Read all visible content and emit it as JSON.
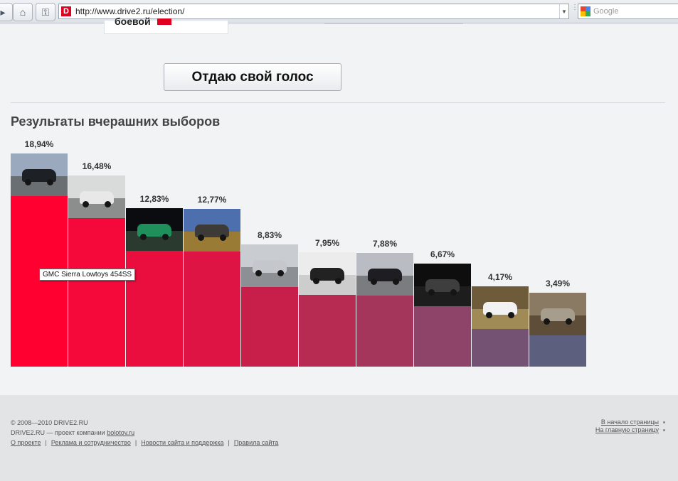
{
  "browser": {
    "url": "http://www.drive2.ru/election/",
    "favicon_letter": "D",
    "search_engine": "Google"
  },
  "page": {
    "top_card_text": "боевой",
    "vote_button_label": "Отдаю свой голос",
    "results_title": "Результаты вчерашних выборов",
    "tooltip": "GMC Sierra Lowtoys 454SS"
  },
  "chart_data": {
    "type": "bar",
    "categories": [
      "",
      "",
      "",
      "",
      "",
      "",
      "",
      "",
      "",
      ""
    ],
    "values": [
      18.94,
      16.48,
      12.83,
      12.77,
      8.83,
      7.95,
      7.88,
      6.67,
      4.17,
      3.49
    ],
    "value_labels": [
      "18,94%",
      "16,48%",
      "12,83%",
      "12,77%",
      "8,83%",
      "7,95%",
      "7,88%",
      "6,67%",
      "4,17%",
      "3,49%"
    ],
    "bar_colors": [
      "#ff0031",
      "#f4093a",
      "#ea0e3e",
      "#dd1444",
      "#c81e4a",
      "#b72a52",
      "#a4365c",
      "#8e4468",
      "#745274",
      "#5d5f7e"
    ],
    "photo_colors": [
      {
        "sky": "#9aa9bd",
        "ground": "#6a6f74",
        "car": "#1d2126"
      },
      {
        "sky": "#d9dada",
        "ground": "#8c8d8d",
        "car": "#e8e8e8"
      },
      {
        "sky": "#0b0c10",
        "ground": "#2a3a2f",
        "car": "#1f8f5c"
      },
      {
        "sky": "#4d6fae",
        "ground": "#9a7b35",
        "car": "#3c3b37"
      },
      {
        "sky": "#c9ccd0",
        "ground": "#8c8f94",
        "car": "#c4c8cc"
      },
      {
        "sky": "#ececec",
        "ground": "#cdcdcd",
        "car": "#222222"
      },
      {
        "sky": "#b9bcc2",
        "ground": "#7a7c80",
        "car": "#1e1e22"
      },
      {
        "sky": "#0e0e0e",
        "ground": "#1d1d1d",
        "car": "#3e3e3e"
      },
      {
        "sky": "#6e5b3a",
        "ground": "#a08a56",
        "car": "#f2f2f2"
      },
      {
        "sky": "#8a7a63",
        "ground": "#5e4d38",
        "car": "#a79d8c"
      }
    ],
    "ylim": [
      0,
      18.94
    ]
  },
  "footer": {
    "copyright": "© 2008—2010 DRIVE2.RU",
    "company_prefix": "DRIVE2.RU — проект компании",
    "company_link": "bolotov.ru",
    "links": [
      "О проекте",
      "Реклама и сотрудничество",
      "Новости сайта и поддержка",
      "Правила сайта"
    ],
    "right_links": [
      "В начало страницы",
      "На главную страницу"
    ]
  }
}
